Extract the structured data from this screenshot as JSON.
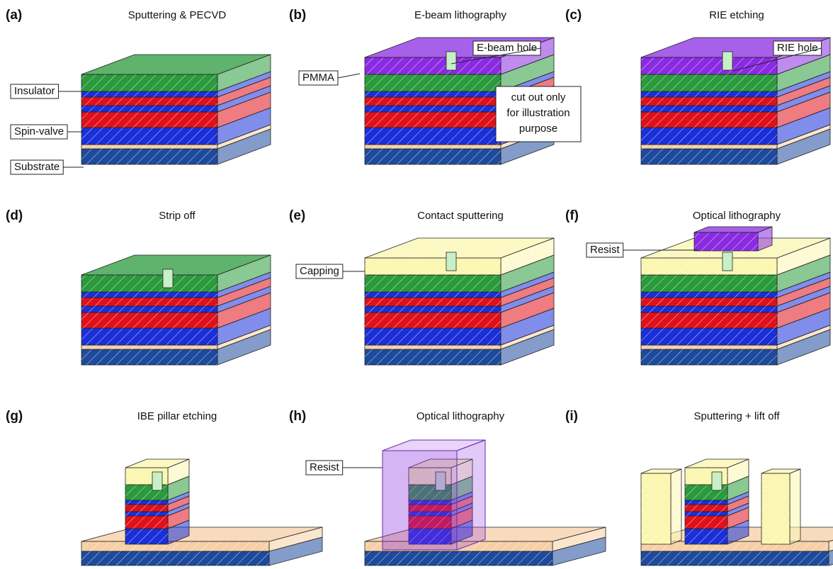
{
  "panels": [
    {
      "letter": "(a)",
      "title": "Sputtering & PECVD",
      "labels": [
        "Insulator",
        "Spin-valve",
        "Substrate"
      ]
    },
    {
      "letter": "(b)",
      "title": "E-beam lithography",
      "labels": [
        "PMMA",
        "E-beam hole"
      ],
      "note": [
        "cut out only",
        "for illustration",
        "purpose"
      ]
    },
    {
      "letter": "(c)",
      "title": "RIE etching",
      "labels": [
        "RIE hole"
      ]
    },
    {
      "letter": "(d)",
      "title": "Strip off"
    },
    {
      "letter": "(e)",
      "title": "Contact sputtering",
      "labels": [
        "Capping"
      ]
    },
    {
      "letter": "(f)",
      "title": "Optical lithography",
      "labels": [
        "Resist"
      ]
    },
    {
      "letter": "(g)",
      "title": "IBE pillar etching"
    },
    {
      "letter": "(h)",
      "title": "Optical lithography",
      "labels": [
        "Resist"
      ]
    },
    {
      "letter": "(i)",
      "title": "Sputtering + lift off"
    }
  ]
}
